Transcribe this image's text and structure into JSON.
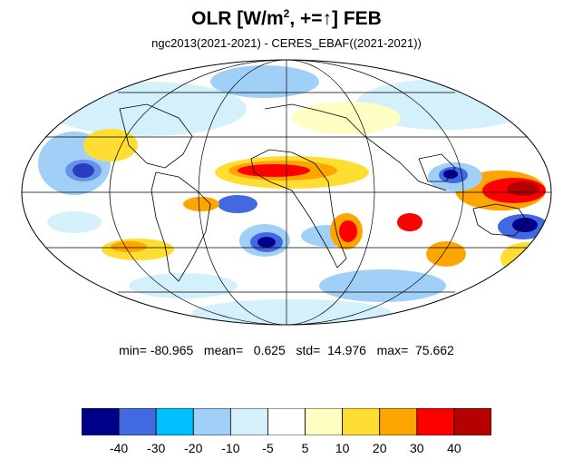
{
  "title": {
    "prefix": "OLR [W/m",
    "sup": "2",
    "suffix": ", +=",
    "arrow": "↑",
    "tail": "] FEB"
  },
  "subtitle": "ngc2013(2021-2021) - CERES_EBAF((2021-2021))",
  "stats": {
    "text": "min= -80.965   mean=   0.625   std=  14.976   max=  75.662",
    "min": -80.965,
    "mean": 0.625,
    "std": 14.976,
    "max": 75.662
  },
  "colorbar": {
    "colors": [
      "#00008b",
      "#4169e1",
      "#00bfff",
      "#a0cff8",
      "#d4f0fb",
      "#ffffff",
      "#ffffc4",
      "#ffdd33",
      "#ffa500",
      "#ff0000",
      "#b40000"
    ],
    "labels": [
      "-40",
      "-30",
      "-20",
      "-10",
      "-5",
      "5",
      "10",
      "20",
      "30",
      "40"
    ]
  },
  "map": {
    "projection": "mollweide",
    "gridlines": true
  }
}
